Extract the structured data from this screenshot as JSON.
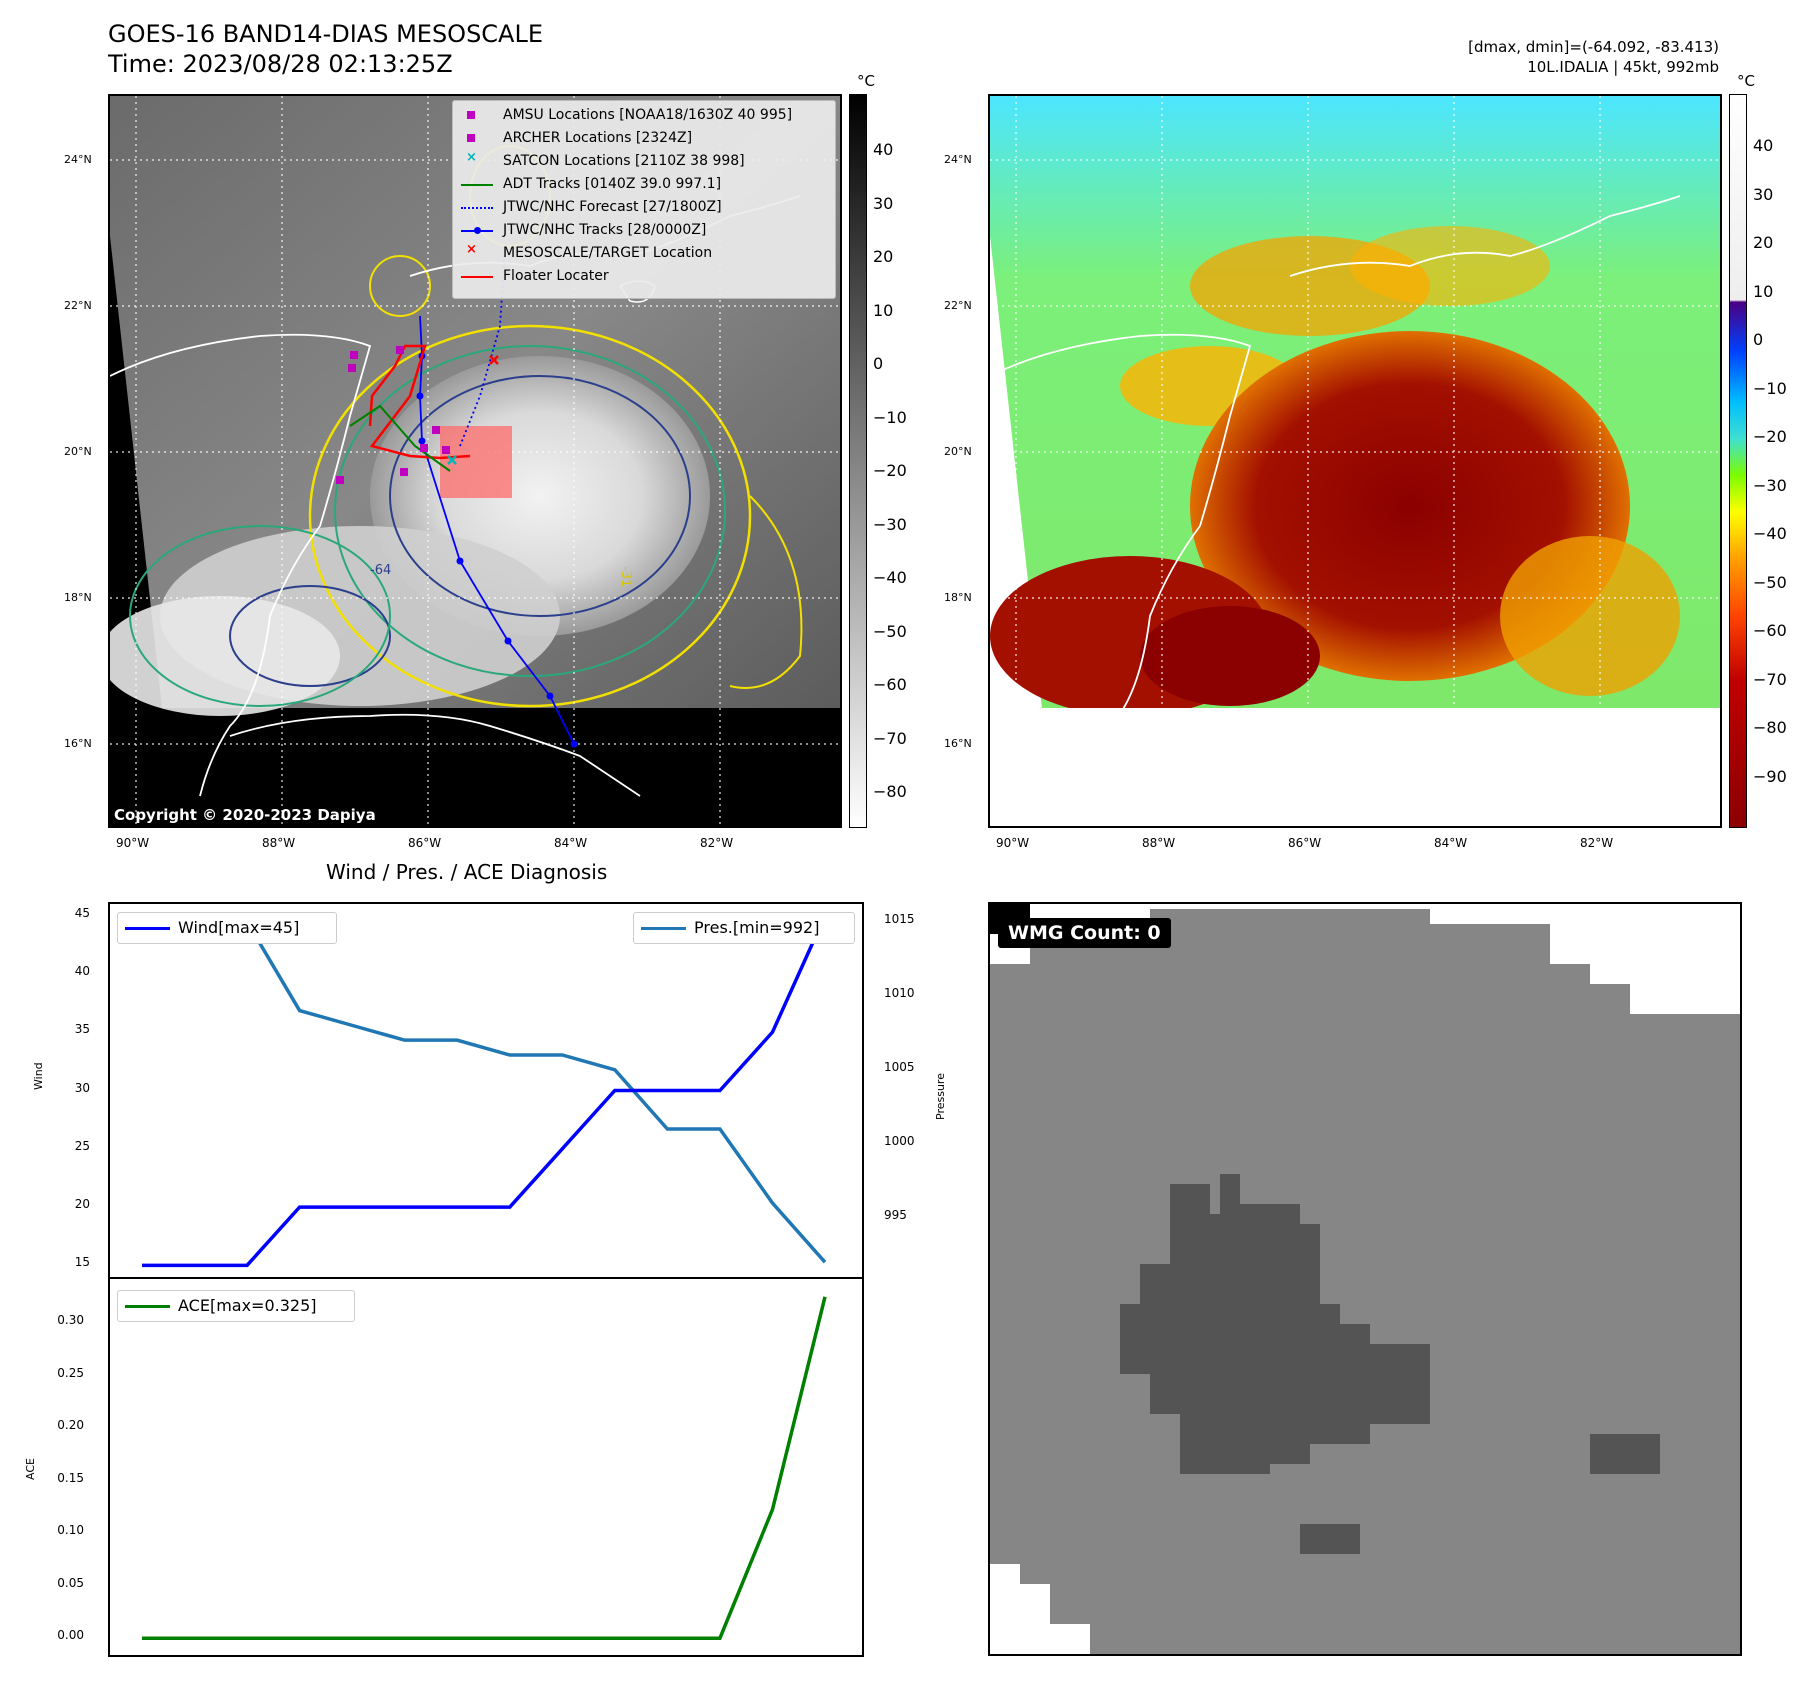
{
  "header": {
    "title": "GOES-16 BAND14-DIAS MESOSCALE",
    "time": "Time: 2023/08/28 02:13:25Z",
    "dmax_dmin": "[dmax, dmin]=(-64.092, -83.413)",
    "storm": "10L.IDALIA | 45kt, 992mb"
  },
  "map": {
    "lat_labels": [
      "24°N",
      "22°N",
      "20°N",
      "18°N",
      "16°N"
    ],
    "lon_labels": [
      "90°W",
      "88°W",
      "86°W",
      "84°W",
      "82°W"
    ],
    "copyright": "Copyright © 2020-2023 Dapiya",
    "contour_labels": [
      "-64",
      "-31",
      "-31",
      "-31",
      "-31"
    ]
  },
  "legend": {
    "items": [
      {
        "label": "AMSU Locations [NOAA18/1630Z 40 995]",
        "color": "#c000c0",
        "marker": "square"
      },
      {
        "label": "ARCHER Locations [2324Z]",
        "color": "#c000c0",
        "marker": "square"
      },
      {
        "label": "SATCON Locations [2110Z 38 998]",
        "color": "#00b5b5",
        "marker": "x"
      },
      {
        "label": "ADT Tracks [0140Z 39.0 997.1]",
        "color": "#008000",
        "marker": "line"
      },
      {
        "label": "JTWC/NHC Forecast [27/1800Z]",
        "color": "#0000ff",
        "marker": "dotted"
      },
      {
        "label": "JTWC/NHC Tracks [28/0000Z]",
        "color": "#0000ff",
        "marker": "line-dot"
      },
      {
        "label": "MESOSCALE/TARGET Location",
        "color": "#ff0000",
        "marker": "x"
      },
      {
        "label": "Floater Locater",
        "color": "#ff0000",
        "marker": "line"
      }
    ]
  },
  "colorbar_gray": {
    "unit": "°C",
    "ticks": [
      "40",
      "30",
      "20",
      "10",
      "0",
      "−10",
      "−20",
      "−30",
      "−40",
      "−50",
      "−60",
      "−70",
      "−80"
    ]
  },
  "colorbar_color": {
    "unit": "°C",
    "ticks": [
      "40",
      "30",
      "20",
      "10",
      "0",
      "−10",
      "−20",
      "−30",
      "−40",
      "−50",
      "−60",
      "−70",
      "−80",
      "−90"
    ]
  },
  "diagnosis": {
    "title": "Wind / Pres. / ACE Diagnosis",
    "wind_ylabel": "Wind",
    "pres_ylabel": "Pressure",
    "ace_ylabel": "ACE",
    "wind_ticks": [
      "45",
      "40",
      "35",
      "30",
      "25",
      "20",
      "15"
    ],
    "pres_ticks": [
      "1015",
      "1010",
      "1005",
      "1000",
      "995"
    ],
    "ace_ticks": [
      "0.30",
      "0.25",
      "0.20",
      "0.15",
      "0.10",
      "0.05",
      "0.00"
    ],
    "wind_legend": "Wind[max=45]",
    "pres_legend": "Pres.[min=992]",
    "ace_legend": "ACE[max=0.325]"
  },
  "wmg": {
    "label": "WMG Count: 0"
  },
  "chart_data": [
    {
      "type": "line",
      "title": "Wind / Pres. / ACE Diagnosis",
      "ylabel": "Wind",
      "ylim": [
        14,
        46
      ],
      "series": [
        {
          "name": "Wind[max=45]",
          "color": "#0000ff",
          "values": [
            15,
            15,
            15,
            20,
            20,
            20,
            20,
            20,
            25,
            30,
            30,
            30,
            35,
            45
          ]
        }
      ]
    },
    {
      "type": "line",
      "ylabel": "Pressure",
      "ylim": [
        991,
        1016.2
      ],
      "series": [
        {
          "name": "Pres.[min=992]",
          "color": "#1f77b4",
          "values": [
            1015,
            1015,
            1015,
            1009,
            1008,
            1007,
            1007,
            1006,
            1006,
            1005,
            1001,
            1001,
            996,
            992
          ]
        }
      ]
    },
    {
      "type": "line",
      "ylabel": "ACE",
      "ylim": [
        -0.016,
        0.342
      ],
      "series": [
        {
          "name": "ACE[max=0.325]",
          "color": "#008000",
          "values": [
            0,
            0,
            0,
            0,
            0,
            0,
            0,
            0,
            0,
            0,
            0,
            0,
            0.1225,
            0.325
          ]
        }
      ]
    }
  ]
}
